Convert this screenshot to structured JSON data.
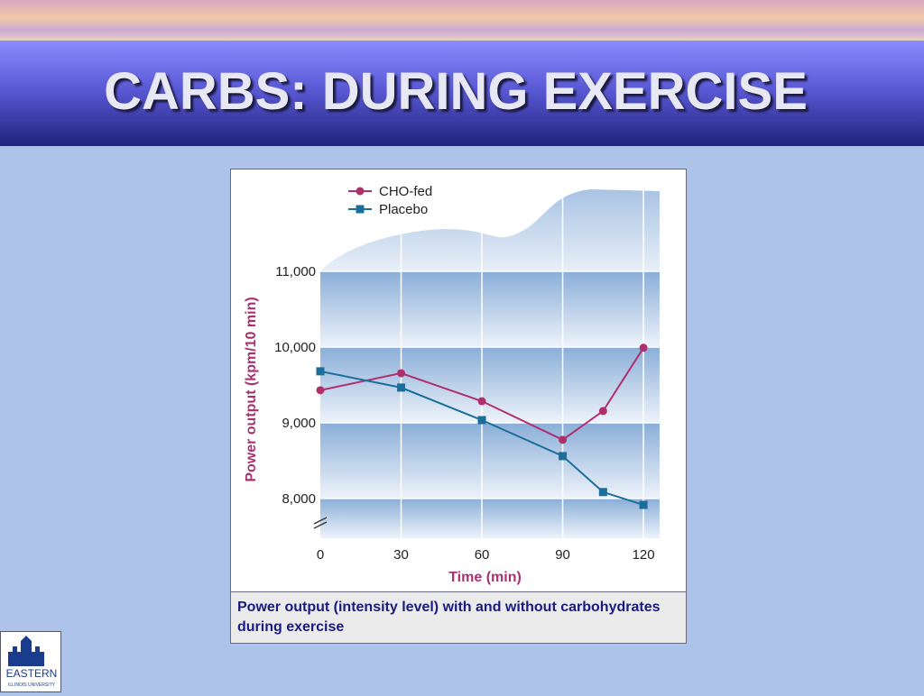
{
  "slide": {
    "title": "CARBS: DURING EXERCISE",
    "caption": "Power output (intensity level) with and without carbohydrates during exercise",
    "logo": "EASTERN",
    "logo_sub": "ILLINOIS UNIVERSITY"
  },
  "chart_data": {
    "type": "line",
    "x_label": "Time (min)",
    "y_label": "Power output (kpm/10 min)",
    "x": [
      0,
      30,
      60,
      90,
      105,
      120
    ],
    "series": [
      {
        "name": "CHO-fed",
        "color": "#b0306e",
        "marker": "circle",
        "values": [
          9430,
          9655,
          9285,
          8775,
          9155,
          9990
        ]
      },
      {
        "name": "Placebo",
        "color": "#1a6f9a",
        "marker": "square",
        "values": [
          9680,
          9465,
          9035,
          8560,
          8085,
          7915
        ]
      }
    ],
    "xlim": [
      0,
      126
    ],
    "xticks": [
      0,
      30,
      60,
      90,
      120
    ],
    "ylim": [
      7475,
      11000
    ],
    "yticks": [
      {
        "value": 8000,
        "label": "8,000"
      },
      {
        "value": 9000,
        "label": "9,000"
      },
      {
        "value": 10000,
        "label": "10,000"
      },
      {
        "value": 11000,
        "label": "11,000"
      }
    ],
    "grid": true,
    "legend": "top-left"
  }
}
